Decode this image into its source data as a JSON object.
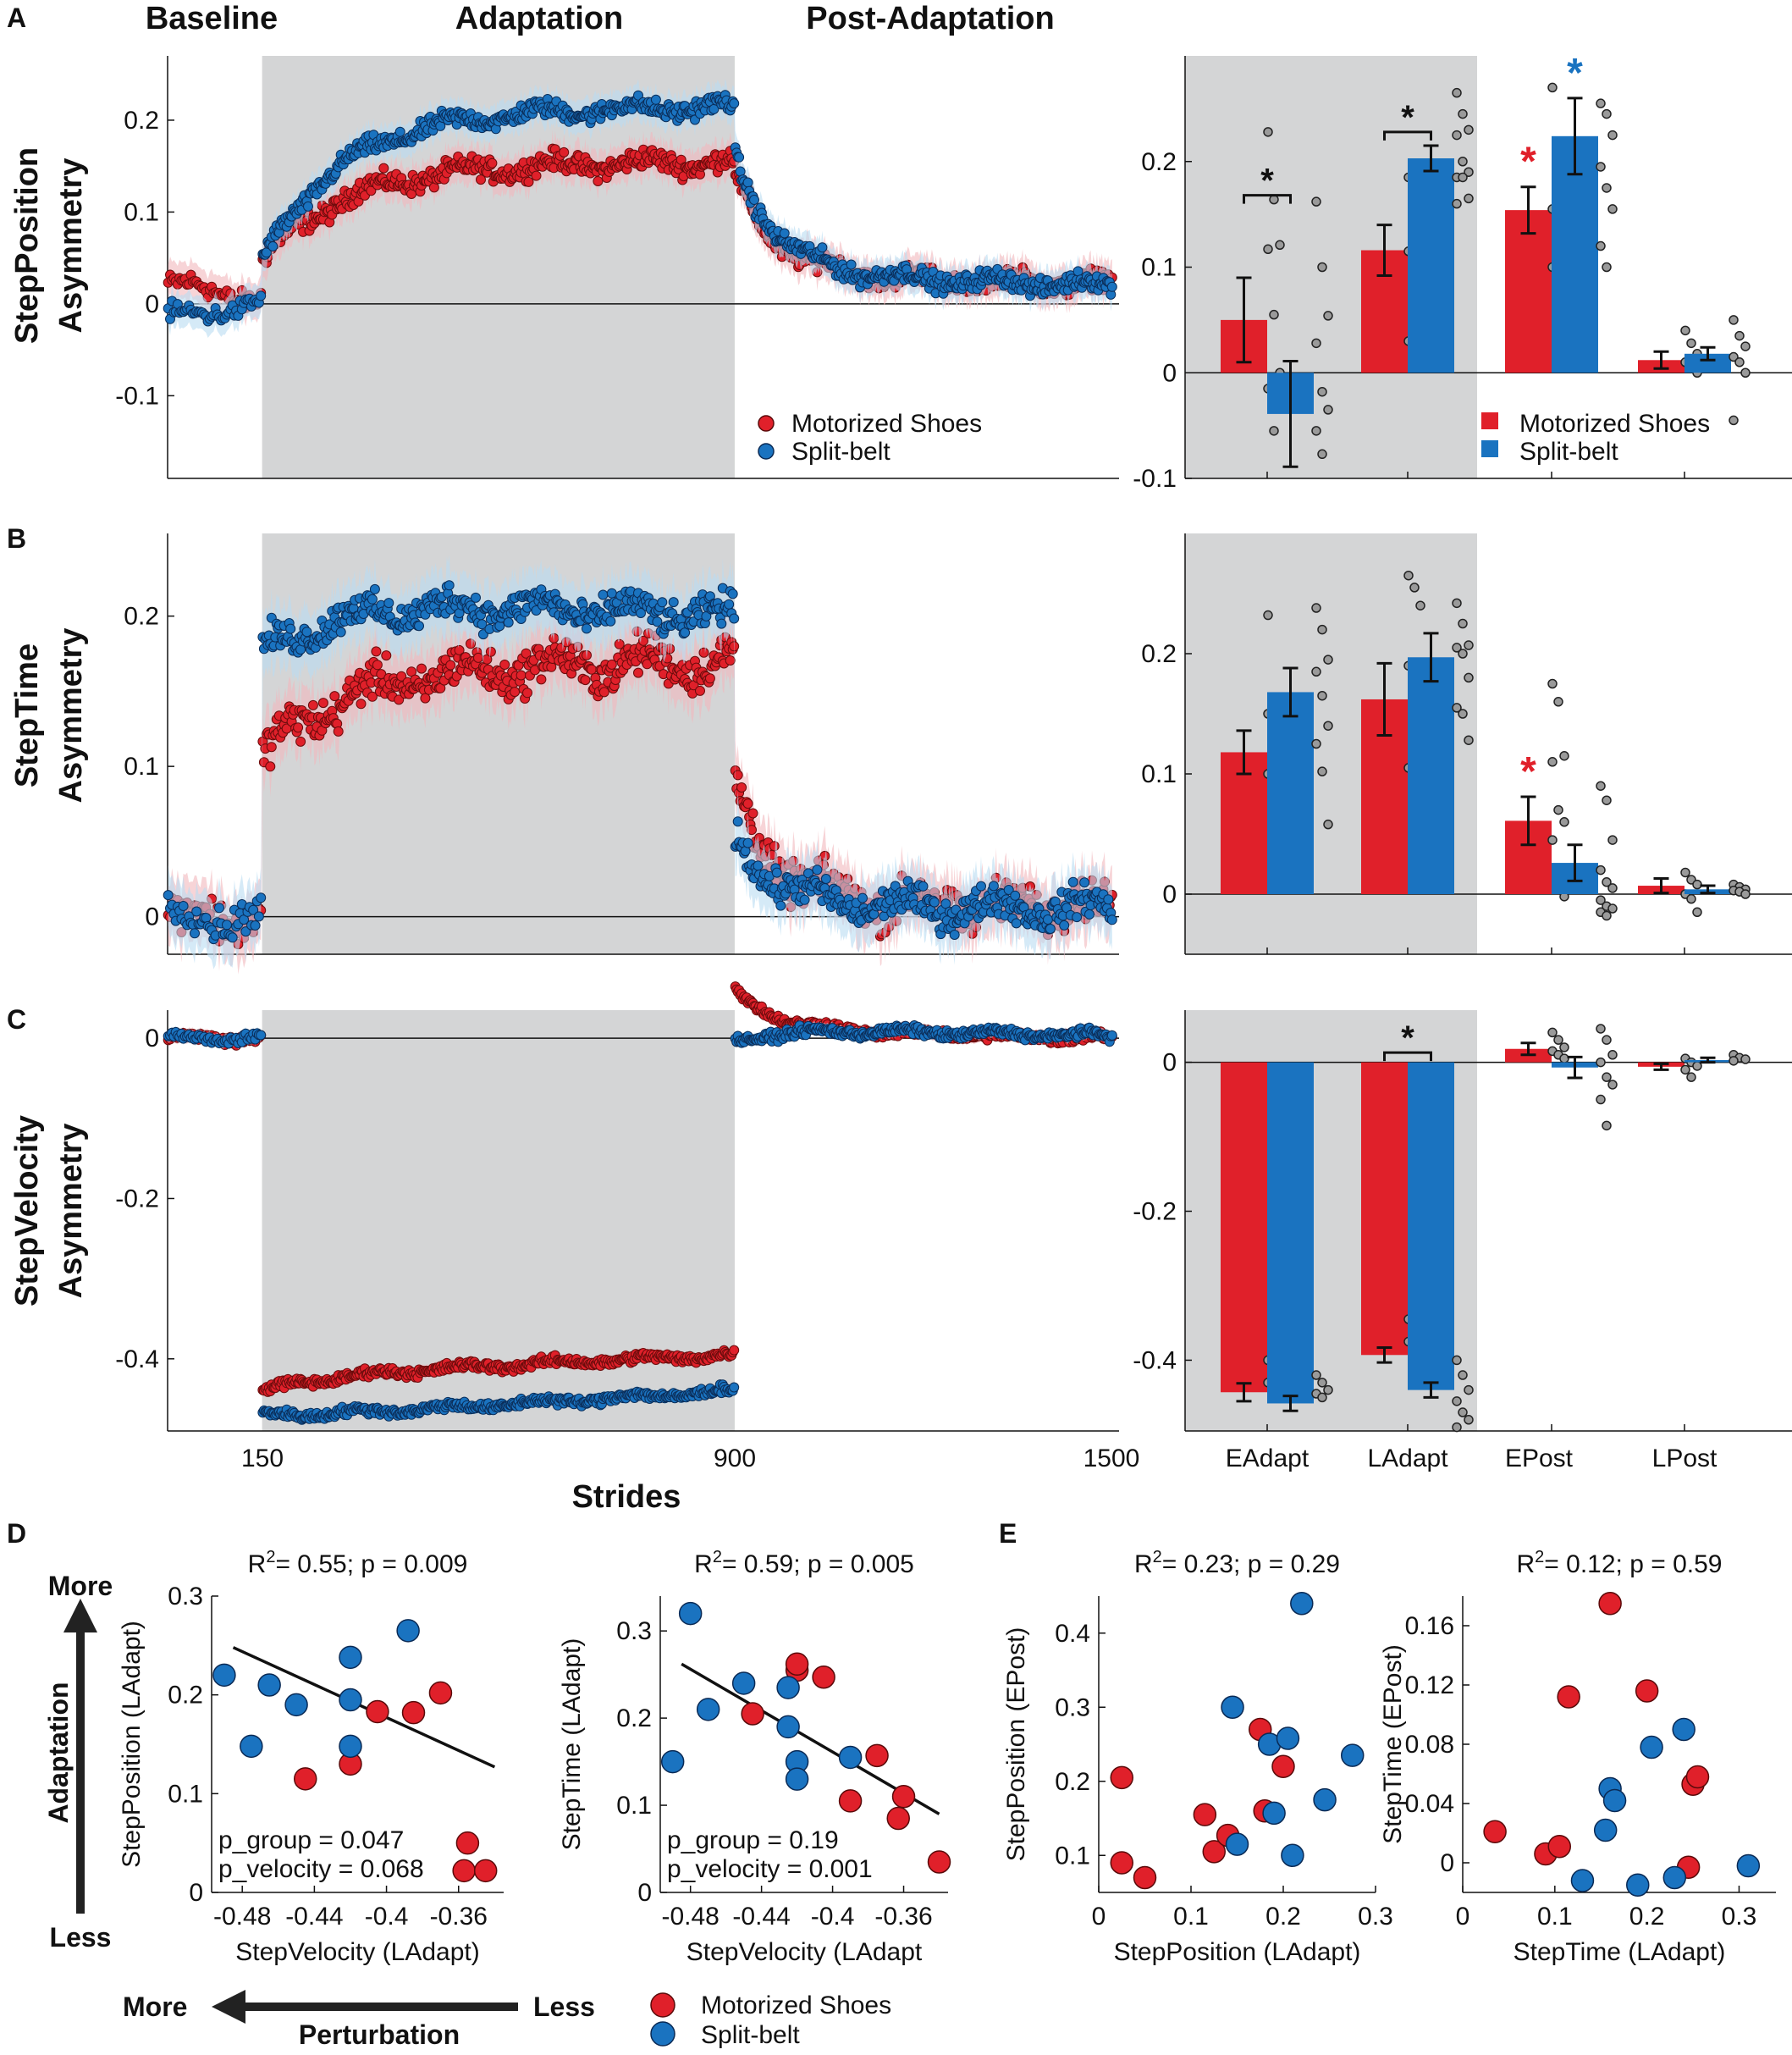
{
  "colors": {
    "ms": "#e0202a",
    "sb": "#1a73c0",
    "ms_fill": "#f2b8bc",
    "sb_fill": "#b9dcf2",
    "shade": "#d4d5d6",
    "dots": "#9a9a9a"
  },
  "legend": {
    "ms": "Motorized Shoes",
    "sb": "Split-belt"
  },
  "panel_letters": [
    "A",
    "B",
    "C",
    "D",
    "E"
  ],
  "phase_labels": [
    "Baseline",
    "Adaptation",
    "Post-Adaptation"
  ],
  "x_axis_label": "Strides",
  "x_ticks": [
    "150",
    "900",
    "1500"
  ],
  "bar_categories": [
    "EAdapt",
    "LAdapt",
    "EPost",
    "LPost"
  ],
  "row_titles": [
    {
      "line1": "StepPosition",
      "line2": "Asymmetry"
    },
    {
      "line1": "StepTime",
      "line2": "Asymmetry"
    },
    {
      "line1": "StepVelocity",
      "line2": "Asymmetry"
    }
  ],
  "significance": "*",
  "arrows": {
    "more": "More",
    "less": "Less",
    "adaptation": "Adaptation",
    "perturbation": "Perturbation"
  },
  "chart_data": [
    {
      "id": "A_timecourse",
      "type": "scatter",
      "title": "StepPosition Asymmetry",
      "xlabel": "Strides",
      "xlim": [
        0,
        1510
      ],
      "ylim": [
        -0.19,
        0.27
      ],
      "y_ticks": [
        -0.1,
        0,
        0.1,
        0.2
      ],
      "y_tick_labels": [
        "-0.1",
        "0",
        "0.1",
        "0.2"
      ],
      "adaptation_window": [
        150,
        900
      ],
      "series": [
        {
          "name": "Motorized Shoes",
          "baseline": [
            0.022,
            0.005
          ],
          "adapt": [
            0.045,
            0.15,
            0.155
          ],
          "post": [
            0.14,
            0.03,
            0.022
          ],
          "noise": 0.008,
          "band": 0.02
        },
        {
          "name": "Split-belt",
          "baseline": [
            -0.015,
            0.0
          ],
          "adapt": [
            0.045,
            0.21,
            0.215
          ],
          "post": [
            0.16,
            0.032,
            0.02
          ],
          "noise": 0.007,
          "band": 0.018
        }
      ]
    },
    {
      "id": "A_bars",
      "type": "bar",
      "categories": [
        "EAdapt",
        "LAdapt",
        "EPost",
        "LPost"
      ],
      "ylim": [
        -0.1,
        0.3
      ],
      "y_ticks": [
        -0.1,
        0,
        0.1,
        0.2
      ],
      "y_tick_labels": [
        "-0.1",
        "0",
        "0.1",
        "0.2"
      ],
      "series": [
        {
          "name": "Motorized Shoes",
          "values": [
            0.05,
            0.116,
            0.154,
            0.012
          ],
          "errors": [
            0.04,
            0.024,
            0.022,
            0.008
          ]
        },
        {
          "name": "Split-belt",
          "values": [
            -0.039,
            0.203,
            0.224,
            0.018
          ],
          "errors": [
            0.05,
            0.012,
            0.036,
            0.006
          ]
        }
      ],
      "points": [
        [
          [
            0.228,
            0.164,
            0.121,
            0.117,
            0.055,
            0.0,
            -0.015,
            -0.055
          ],
          [
            0.162,
            0.1,
            0.054,
            0.028,
            -0.018,
            -0.035,
            -0.055,
            -0.077
          ]
        ],
        [
          [
            0.185,
            0.18,
            0.165,
            0.115,
            0.08,
            0.065,
            0.03,
            0.025
          ],
          [
            0.265,
            0.245,
            0.23,
            0.225,
            0.2,
            0.19,
            0.185,
            0.185,
            0.165,
            0.16
          ]
        ],
        [
          [
            0.27,
            0.205,
            0.165,
            0.155,
            0.13,
            0.105,
            0.1,
            0.065
          ],
          [
            0.255,
            0.245,
            0.225,
            0.195,
            0.175,
            0.155,
            0.12,
            0.1
          ]
        ],
        [
          [
            0.04,
            0.028,
            0.018,
            0.01,
            0.006,
            0.0
          ],
          [
            0.05,
            0.035,
            0.025,
            0.015,
            0.01,
            0.0,
            -0.045
          ]
        ]
      ],
      "sig_brackets": [
        0,
        1
      ],
      "group_stars": [
        {
          "cat": 2,
          "series": 0
        },
        {
          "cat": 2,
          "series": 1
        }
      ]
    },
    {
      "id": "B_timecourse",
      "type": "scatter",
      "title": "StepTime Asymmetry",
      "xlabel": "Strides",
      "xlim": [
        0,
        1510
      ],
      "ylim": [
        -0.025,
        0.255
      ],
      "y_ticks": [
        0,
        0.1,
        0.2
      ],
      "y_tick_labels": [
        "0",
        "0.1",
        "0.2"
      ],
      "adaptation_window": [
        150,
        900
      ],
      "series": [
        {
          "name": "Motorized Shoes",
          "baseline": [
            0.0,
            0.0
          ],
          "adapt": [
            0.105,
            0.165,
            0.17
          ],
          "post": [
            0.085,
            0.008,
            0.006
          ],
          "noise": 0.01,
          "band": 0.02
        },
        {
          "name": "Split-belt",
          "baseline": [
            0.0,
            0.0
          ],
          "adapt": [
            0.175,
            0.215,
            0.2
          ],
          "post": [
            0.055,
            0.006,
            0.006
          ],
          "noise": 0.008,
          "band": 0.02
        }
      ]
    },
    {
      "id": "B_bars",
      "type": "bar",
      "categories": [
        "EAdapt",
        "LAdapt",
        "EPost",
        "LPost"
      ],
      "ylim": [
        -0.05,
        0.3
      ],
      "y_ticks": [
        0,
        0.1,
        0.2
      ],
      "y_tick_labels": [
        "0",
        "0.1",
        "0.2"
      ],
      "series": [
        {
          "name": "Motorized Shoes",
          "values": [
            0.118,
            0.162,
            0.061,
            0.007
          ],
          "errors": [
            0.018,
            0.03,
            0.02,
            0.006
          ]
        },
        {
          "name": "Split-belt",
          "values": [
            0.168,
            0.197,
            0.026,
            0.004
          ],
          "errors": [
            0.02,
            0.02,
            0.015,
            0.003
          ]
        }
      ],
      "points": [
        [
          [
            0.232,
            0.145,
            0.13,
            0.1,
            0.095,
            0.06,
            0.15,
            0.115
          ],
          [
            0.238,
            0.22,
            0.195,
            0.185,
            0.165,
            0.14,
            0.125,
            0.102,
            0.058
          ]
        ],
        [
          [
            0.265,
            0.255,
            0.24,
            0.19,
            0.13,
            0.125,
            0.105,
            0.1,
            0.035
          ],
          [
            0.242,
            0.225,
            0.207,
            0.205,
            0.2,
            0.18,
            0.155,
            0.15,
            0.128
          ]
        ],
        [
          [
            0.175,
            0.16,
            0.115,
            0.11,
            0.07,
            0.06,
            0.045,
            0.01,
            -0.002
          ],
          [
            0.09,
            0.078,
            0.045,
            0.02,
            0.01,
            0.005,
            -0.005,
            -0.01,
            -0.012,
            -0.015,
            -0.018
          ]
        ],
        [
          [
            0.018,
            0.012,
            0.008,
            0.0,
            -0.004,
            -0.015
          ],
          [
            0.008,
            0.006,
            0.004,
            0.003,
            0.002,
            0.0
          ]
        ]
      ],
      "sig_brackets": [],
      "group_stars": [
        {
          "cat": 2,
          "series": 0
        }
      ]
    },
    {
      "id": "C_timecourse",
      "type": "scatter",
      "title": "StepVelocity Asymmetry",
      "xlabel": "Strides",
      "xlim": [
        0,
        1510
      ],
      "ylim": [
        -0.49,
        0.035
      ],
      "y_ticks": [
        -0.4,
        -0.2,
        0
      ],
      "y_tick_labels": [
        "-0.4",
        "-0.2",
        "0"
      ],
      "adaptation_window": [
        150,
        900
      ],
      "series": [
        {
          "name": "Motorized Shoes",
          "baseline": [
            0.0,
            0.0
          ],
          "adapt": [
            -0.44,
            -0.42,
            -0.395
          ],
          "post": [
            0.06,
            0.01,
            0.0
          ],
          "noise": 0.004,
          "band": 0.008
        },
        {
          "name": "Split-belt",
          "baseline": [
            0.0,
            0.0
          ],
          "adapt": [
            -0.47,
            -0.475,
            -0.44
          ],
          "post": [
            -0.005,
            0.012,
            0.003
          ],
          "noise": 0.004,
          "band": 0.008
        }
      ]
    },
    {
      "id": "C_bars",
      "type": "bar",
      "categories": [
        "EAdapt",
        "LAdapt",
        "EPost",
        "LPost"
      ],
      "ylim": [
        -0.495,
        0.07
      ],
      "y_ticks": [
        -0.4,
        -0.2,
        0
      ],
      "y_tick_labels": [
        "-0.4",
        "-0.2",
        "0"
      ],
      "series": [
        {
          "name": "Motorized Shoes",
          "values": [
            -0.443,
            -0.393,
            0.018,
            -0.006
          ],
          "errors": [
            0.012,
            0.01,
            0.008,
            0.004
          ]
        },
        {
          "name": "Split-belt",
          "values": [
            -0.458,
            -0.44,
            -0.007,
            0.003
          ],
          "errors": [
            0.01,
            0.01,
            0.014,
            0.003
          ]
        }
      ],
      "points": [
        [
          [
            -0.4,
            -0.41,
            -0.42,
            -0.43,
            -0.44,
            -0.45
          ],
          [
            -0.42,
            -0.43,
            -0.44,
            -0.445,
            -0.45
          ]
        ],
        [
          [
            -0.345,
            -0.355,
            -0.365,
            -0.375,
            -0.385,
            -0.39
          ],
          [
            -0.4,
            -0.42,
            -0.44,
            -0.455,
            -0.47,
            -0.48,
            -0.49
          ]
        ],
        [
          [
            0.04,
            0.03,
            0.02,
            0.015,
            0.01,
            0.005
          ],
          [
            0.045,
            0.03,
            0.01,
            0.0,
            -0.02,
            -0.03,
            -0.05,
            -0.085
          ]
        ],
        [
          [
            0.005,
            0.0,
            -0.005,
            -0.01,
            -0.02
          ],
          [
            0.01,
            0.006,
            0.004,
            0.002
          ]
        ]
      ],
      "sig_brackets": [
        1
      ],
      "group_stars": []
    },
    {
      "id": "D_left",
      "type": "scatter",
      "title": "R² = 0.55; p = 0.009",
      "xlabel": "StepVelocity (LAdapt)",
      "ylabel": "StepPosition (LAdapt)",
      "xlim": [
        -0.497,
        -0.335
      ],
      "ylim": [
        0,
        0.3
      ],
      "x_ticks": [
        -0.48,
        -0.44,
        -0.4,
        -0.36
      ],
      "x_tick_labels": [
        "-0.48",
        "-0.44",
        "-0.4",
        "-0.36"
      ],
      "y_ticks": [
        0,
        0.1,
        0.2,
        0.3
      ],
      "y_tick_labels": [
        "0",
        "0.1",
        "0.2",
        "0.3"
      ],
      "r2": "0.55",
      "p": "0.009",
      "annotations": [
        "p_group = 0.047",
        "p_velocity = 0.068"
      ],
      "fit_line": [
        [
          -0.485,
          0.248
        ],
        [
          -0.34,
          0.127
        ]
      ],
      "series": [
        {
          "name": "Motorized Shoes",
          "x": [
            -0.445,
            -0.42,
            -0.405,
            -0.385,
            -0.37,
            -0.355,
            -0.357,
            -0.345
          ],
          "y": [
            0.115,
            0.13,
            0.183,
            0.182,
            0.202,
            0.05,
            0.022,
            0.022
          ]
        },
        {
          "name": "Split-belt",
          "x": [
            -0.49,
            -0.475,
            -0.465,
            -0.45,
            -0.42,
            -0.42,
            -0.42,
            -0.388
          ],
          "y": [
            0.22,
            0.148,
            0.21,
            0.19,
            0.238,
            0.195,
            0.148,
            0.265
          ]
        }
      ]
    },
    {
      "id": "D_right",
      "type": "scatter",
      "title": "R² = 0.59; p = 0.005",
      "xlabel": "StepVelocity (LAdapt",
      "ylabel": "StepTime (LAdapt)",
      "xlim": [
        -0.497,
        -0.335
      ],
      "ylim": [
        0,
        0.34
      ],
      "x_ticks": [
        -0.48,
        -0.44,
        -0.4,
        -0.36
      ],
      "x_tick_labels": [
        "-0.48",
        "-0.44",
        "-0.4",
        "-0.36"
      ],
      "y_ticks": [
        0,
        0.1,
        0.2,
        0.3
      ],
      "y_tick_labels": [
        "0",
        "0.1",
        "0.2",
        "0.3"
      ],
      "r2": "0.59",
      "p": "0.005",
      "annotations": [
        "p_group = 0.19",
        "p_velocity = 0.001"
      ],
      "fit_line": [
        [
          -0.485,
          0.262
        ],
        [
          -0.34,
          0.09
        ]
      ],
      "series": [
        {
          "name": "Motorized Shoes",
          "x": [
            -0.445,
            -0.42,
            -0.42,
            -0.405,
            -0.39,
            -0.375,
            -0.363,
            -0.36,
            -0.34
          ],
          "y": [
            0.205,
            0.255,
            0.262,
            0.247,
            0.105,
            0.157,
            0.085,
            0.11,
            0.035
          ]
        },
        {
          "name": "Split-belt",
          "x": [
            -0.49,
            -0.48,
            -0.47,
            -0.45,
            -0.425,
            -0.425,
            -0.42,
            -0.42,
            -0.39
          ],
          "y": [
            0.15,
            0.32,
            0.21,
            0.24,
            0.235,
            0.19,
            0.15,
            0.13,
            0.155
          ]
        }
      ]
    },
    {
      "id": "E_left",
      "type": "scatter",
      "title": "R² = 0.23; p = 0.29",
      "xlabel": "StepPosition (LAdapt)",
      "ylabel": "StepPosition (EPost)",
      "xlim": [
        0,
        0.3
      ],
      "ylim": [
        0.05,
        0.45
      ],
      "x_ticks": [
        0,
        0.1,
        0.2,
        0.3
      ],
      "x_tick_labels": [
        "0",
        "0.1",
        "0.2",
        "0.3"
      ],
      "y_ticks": [
        0.1,
        0.2,
        0.3,
        0.4
      ],
      "y_tick_labels": [
        "0.1",
        "0.2",
        "0.3",
        "0.4"
      ],
      "r2": "0.23",
      "p": "0.29",
      "series": [
        {
          "name": "Motorized Shoes",
          "x": [
            0.025,
            0.025,
            0.05,
            0.115,
            0.125,
            0.14,
            0.175,
            0.18,
            0.2
          ],
          "y": [
            0.205,
            0.09,
            0.07,
            0.155,
            0.105,
            0.127,
            0.27,
            0.16,
            0.22
          ]
        },
        {
          "name": "Split-belt",
          "x": [
            0.145,
            0.15,
            0.185,
            0.19,
            0.205,
            0.21,
            0.22,
            0.245,
            0.275
          ],
          "y": [
            0.3,
            0.115,
            0.25,
            0.157,
            0.258,
            0.1,
            0.44,
            0.175,
            0.235
          ]
        }
      ]
    },
    {
      "id": "E_right",
      "type": "scatter",
      "title": "R² = 0.12; p = 0.59",
      "xlabel": "StepTime (LAdapt)",
      "ylabel": "StepTime (EPost)",
      "xlim": [
        0,
        0.34
      ],
      "ylim": [
        -0.02,
        0.18
      ],
      "x_ticks": [
        0,
        0.1,
        0.2,
        0.3
      ],
      "x_tick_labels": [
        "0",
        "0.1",
        "0.2",
        "0.3"
      ],
      "y_ticks": [
        0,
        0.04,
        0.08,
        0.12,
        0.16
      ],
      "y_tick_labels": [
        "0",
        "0.04",
        "0.08",
        "0.12",
        "0.16"
      ],
      "r2": "0.12",
      "p": "0.59",
      "series": [
        {
          "name": "Motorized Shoes",
          "x": [
            0.035,
            0.09,
            0.105,
            0.115,
            0.16,
            0.2,
            0.245,
            0.25,
            0.255
          ],
          "y": [
            0.021,
            0.006,
            0.011,
            0.112,
            0.175,
            0.116,
            -0.003,
            0.053,
            0.058
          ]
        },
        {
          "name": "Split-belt",
          "x": [
            0.13,
            0.155,
            0.16,
            0.165,
            0.19,
            0.205,
            0.23,
            0.24,
            0.31
          ],
          "y": [
            -0.012,
            0.022,
            0.05,
            0.042,
            -0.015,
            0.078,
            -0.01,
            0.09,
            -0.002
          ]
        }
      ]
    }
  ]
}
